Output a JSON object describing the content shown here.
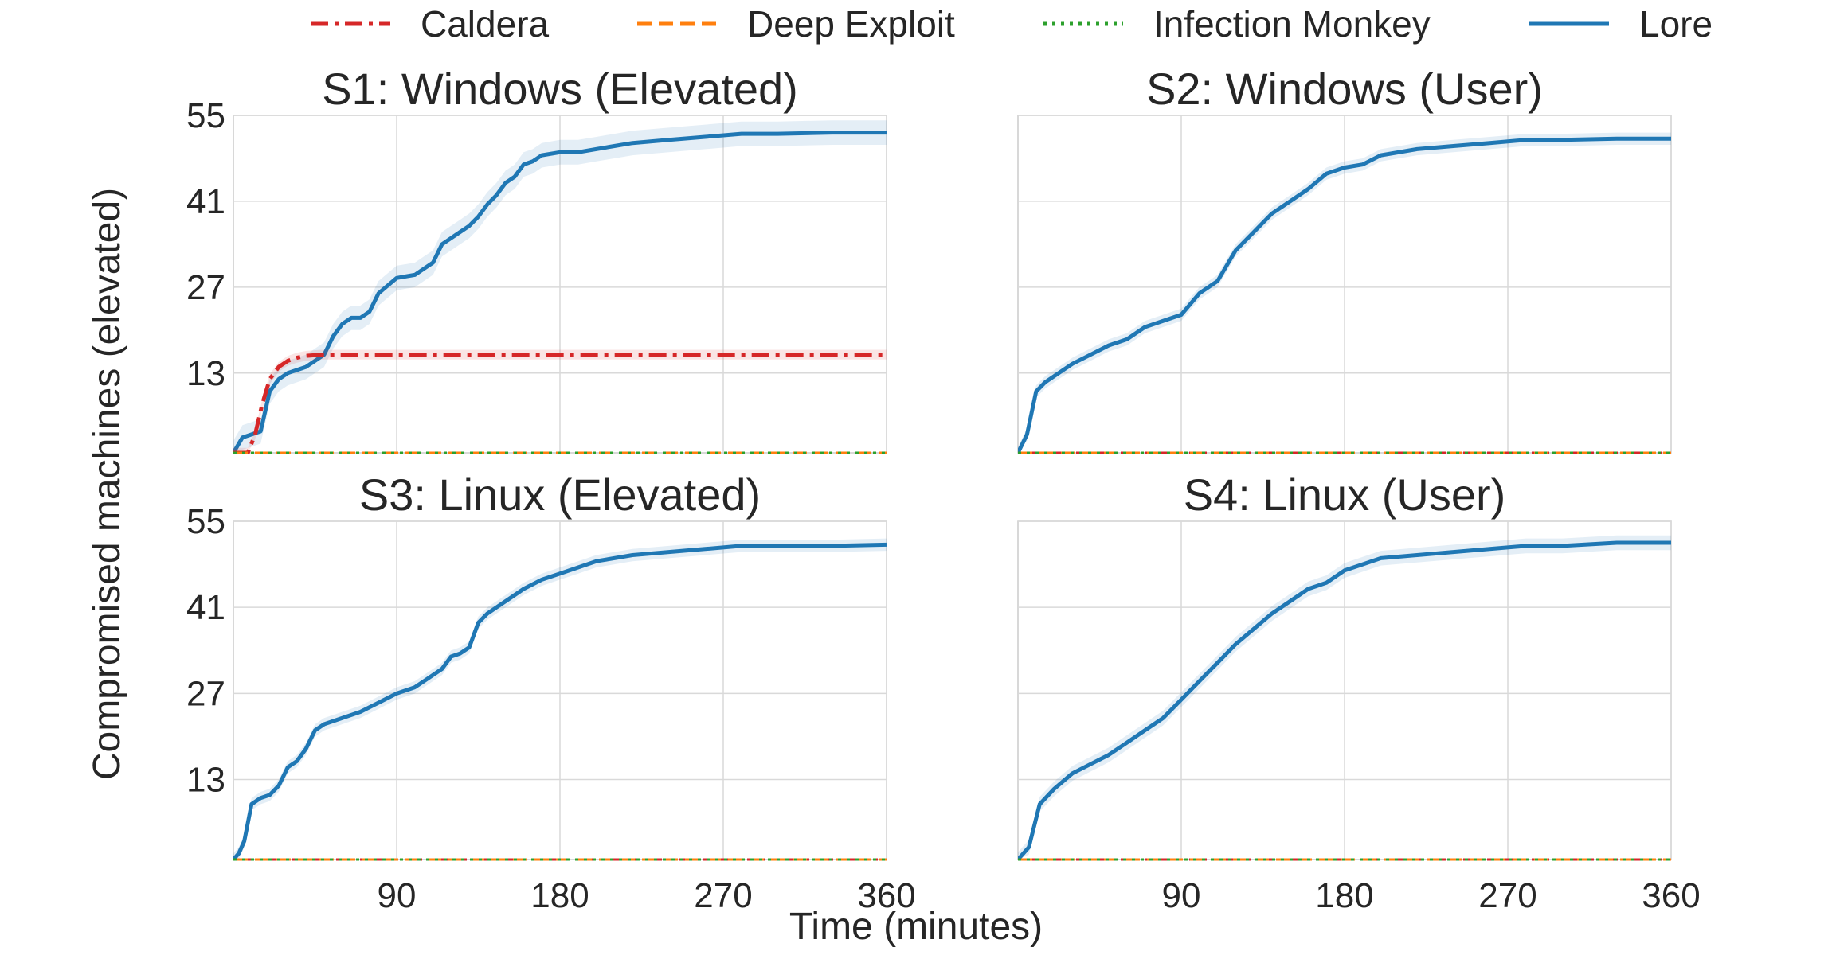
{
  "figure": {
    "xlabel": "Time (minutes)",
    "ylabel": "Compromised machines (elevated)"
  },
  "legend": {
    "placement": "top-center",
    "entries": [
      {
        "name": "Caldera",
        "color": "#d62728",
        "style": "dashdot"
      },
      {
        "name": "Deep Exploit",
        "color": "#ff7f0e",
        "style": "dashed"
      },
      {
        "name": "Infection Monkey",
        "color": "#2ca02c",
        "style": "dotted"
      },
      {
        "name": "Lore",
        "color": "#1f77b4",
        "style": "solid"
      }
    ]
  },
  "chart_data": [
    {
      "type": "line",
      "title": "S1: Windows (Elevated)",
      "xlim": [
        0,
        360
      ],
      "ylim": [
        0,
        55
      ],
      "xticks": [
        90,
        180,
        270,
        360
      ],
      "yticks": [
        13,
        27,
        41,
        55
      ],
      "grid": true,
      "series": [
        {
          "name": "Caldera",
          "x": [
            0,
            8,
            12,
            16,
            20,
            25,
            30,
            35,
            40,
            48,
            60,
            360
          ],
          "y": [
            0,
            0,
            3,
            8,
            12,
            14,
            15,
            15.5,
            15.8,
            16,
            16,
            16
          ],
          "band": 0.8
        },
        {
          "name": "Deep Exploit",
          "x": [
            0,
            360
          ],
          "y": [
            0,
            0
          ],
          "band": 0
        },
        {
          "name": "Infection Monkey",
          "x": [
            0,
            360
          ],
          "y": [
            0,
            0
          ],
          "band": 0
        },
        {
          "name": "Lore",
          "x": [
            0,
            5,
            10,
            15,
            20,
            25,
            30,
            40,
            50,
            55,
            60,
            65,
            70,
            75,
            80,
            90,
            100,
            105,
            110,
            115,
            120,
            125,
            130,
            135,
            140,
            145,
            150,
            155,
            160,
            165,
            170,
            180,
            190,
            200,
            210,
            220,
            240,
            260,
            280,
            300,
            330,
            360
          ],
          "y": [
            0,
            2.5,
            3,
            3.5,
            10,
            12,
            13,
            14,
            16,
            19,
            21,
            22,
            22,
            23,
            26,
            28.5,
            29,
            30,
            31,
            34,
            35,
            36,
            37,
            38.5,
            40.5,
            42,
            44,
            45,
            47,
            47.5,
            48.5,
            49,
            49,
            49.5,
            50,
            50.5,
            51,
            51.5,
            52,
            52,
            52.2,
            52.2
          ],
          "band": 2
        }
      ]
    },
    {
      "type": "line",
      "title": "S2: Windows (User)",
      "xlim": [
        0,
        360
      ],
      "ylim": [
        0,
        55
      ],
      "xticks": [
        90,
        180,
        270,
        360
      ],
      "yticks": [
        13,
        27,
        41,
        55
      ],
      "grid": true,
      "series": [
        {
          "name": "Caldera",
          "x": [
            0,
            360
          ],
          "y": [
            0,
            0
          ],
          "band": 0
        },
        {
          "name": "Deep Exploit",
          "x": [
            0,
            360
          ],
          "y": [
            0,
            0
          ],
          "band": 0
        },
        {
          "name": "Infection Monkey",
          "x": [
            0,
            360
          ],
          "y": [
            0,
            0
          ],
          "band": 0
        },
        {
          "name": "Lore",
          "x": [
            0,
            5,
            10,
            15,
            20,
            30,
            40,
            50,
            60,
            70,
            80,
            90,
            100,
            110,
            120,
            130,
            140,
            150,
            160,
            170,
            180,
            190,
            200,
            220,
            240,
            260,
            280,
            300,
            330,
            360
          ],
          "y": [
            0,
            3,
            10,
            11.5,
            12.5,
            14.5,
            16,
            17.5,
            18.5,
            20.5,
            21.5,
            22.5,
            26,
            28,
            33,
            36,
            39,
            41,
            43,
            45.5,
            46.5,
            47,
            48.5,
            49.5,
            50,
            50.5,
            51,
            51,
            51.2,
            51.2
          ],
          "band": 1
        }
      ]
    },
    {
      "type": "line",
      "title": "S3: Linux (Elevated)",
      "xlim": [
        0,
        360
      ],
      "ylim": [
        0,
        55
      ],
      "xticks": [
        90,
        180,
        270,
        360
      ],
      "yticks": [
        13,
        27,
        41,
        55
      ],
      "grid": true,
      "series": [
        {
          "name": "Caldera",
          "x": [
            0,
            360
          ],
          "y": [
            0,
            0
          ],
          "band": 0
        },
        {
          "name": "Deep Exploit",
          "x": [
            0,
            360
          ],
          "y": [
            0,
            0
          ],
          "band": 0
        },
        {
          "name": "Infection Monkey",
          "x": [
            0,
            360
          ],
          "y": [
            0,
            0
          ],
          "band": 0
        },
        {
          "name": "Lore",
          "x": [
            0,
            3,
            6,
            10,
            15,
            20,
            25,
            30,
            35,
            40,
            45,
            50,
            60,
            70,
            80,
            90,
            100,
            105,
            110,
            115,
            120,
            125,
            130,
            135,
            140,
            150,
            160,
            170,
            180,
            190,
            200,
            210,
            220,
            240,
            260,
            280,
            300,
            330,
            360
          ],
          "y": [
            0,
            1,
            3,
            9,
            10,
            10.5,
            12,
            15,
            16,
            18,
            21,
            22,
            23,
            24,
            25.5,
            27,
            28,
            29,
            30,
            31,
            33,
            33.5,
            34.5,
            38.5,
            40,
            42,
            44,
            45.5,
            46.5,
            47.5,
            48.5,
            49,
            49.5,
            50,
            50.5,
            51,
            51,
            51,
            51.2
          ],
          "band": 1
        }
      ]
    },
    {
      "type": "line",
      "title": "S4: Linux (User)",
      "xlim": [
        0,
        360
      ],
      "ylim": [
        0,
        55
      ],
      "xticks": [
        90,
        180,
        270,
        360
      ],
      "yticks": [
        13,
        27,
        41,
        55
      ],
      "grid": true,
      "series": [
        {
          "name": "Caldera",
          "x": [
            0,
            360
          ],
          "y": [
            0,
            0
          ],
          "band": 0
        },
        {
          "name": "Deep Exploit",
          "x": [
            0,
            360
          ],
          "y": [
            0,
            0
          ],
          "band": 0
        },
        {
          "name": "Infection Monkey",
          "x": [
            0,
            360
          ],
          "y": [
            0,
            0
          ],
          "band": 0
        },
        {
          "name": "Lore",
          "x": [
            0,
            6,
            12,
            20,
            30,
            40,
            50,
            60,
            70,
            75,
            80,
            90,
            100,
            110,
            120,
            130,
            140,
            150,
            160,
            170,
            180,
            190,
            200,
            220,
            240,
            260,
            280,
            300,
            330,
            360
          ],
          "y": [
            0,
            2,
            9,
            11.5,
            14,
            15.5,
            17,
            19,
            21,
            22,
            23,
            26,
            29,
            32,
            35,
            37.5,
            40,
            42,
            44,
            45,
            47,
            48,
            49,
            49.5,
            50,
            50.5,
            51,
            51,
            51.5,
            51.5
          ],
          "band": 1.2
        }
      ]
    }
  ]
}
